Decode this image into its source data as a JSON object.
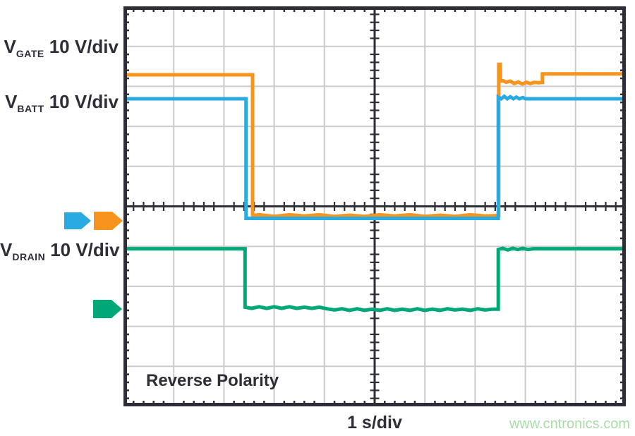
{
  "scope": {
    "channel_labels": [
      {
        "symbol": "V",
        "subscript": "GATE",
        "scale": "10 V/div"
      },
      {
        "symbol": "V",
        "subscript": "BATT",
        "scale": "10 V/div"
      },
      {
        "symbol": "V",
        "subscript": "DRAIN",
        "scale": "10 V/div"
      }
    ],
    "annotation": "Reverse Polarity",
    "timebase_label": "1 s/div",
    "watermark": "www.cntronics.com",
    "colors": {
      "vgate_orange": "#F7941E",
      "vbatt_blue": "#29ABE2",
      "vdrain_green": "#00A878",
      "graticule_dark": "#2E2E38",
      "grid_gray": "#CBCBCB",
      "text_dark": "#2E2E38",
      "watermark_green": "#A9DCA7"
    }
  },
  "chart_data": {
    "type": "line",
    "title": "Reverse Polarity",
    "xlabel": "1 s/div",
    "x_seconds_per_div": 1,
    "volts_per_div": 10,
    "grid": {
      "x_divisions": 10,
      "y_divisions": 10,
      "minor_ticks_per_div": 5,
      "center_crosshair": true,
      "grid_on": true
    },
    "note": "point format [x_div, y_div]; y measured in graticule divisions from top edge; each channel scaled 10 V/div",
    "series": [
      {
        "name": "V_GATE",
        "scale": "10 V/div",
        "color": "#F7941E",
        "z": 2,
        "points": [
          [
            0,
            1.71
          ],
          [
            2.57,
            1.71
          ],
          [
            2.57,
            5.23
          ],
          [
            2.7,
            5.21
          ],
          [
            3.0,
            5.25
          ],
          [
            3.3,
            5.21
          ],
          [
            3.6,
            5.24
          ],
          [
            3.9,
            5.21
          ],
          [
            4.2,
            5.25
          ],
          [
            4.5,
            5.22
          ],
          [
            4.8,
            5.25
          ],
          [
            5.1,
            5.21
          ],
          [
            5.4,
            5.24
          ],
          [
            5.7,
            5.21
          ],
          [
            6.0,
            5.25
          ],
          [
            6.3,
            5.22
          ],
          [
            6.6,
            5.25
          ],
          [
            6.9,
            5.21
          ],
          [
            7.2,
            5.24
          ],
          [
            7.47,
            5.23
          ],
          [
            7.47,
            1.45
          ],
          [
            7.5,
            1.45
          ],
          [
            7.5,
            1.87
          ],
          [
            7.56,
            1.86
          ],
          [
            7.62,
            1.9
          ],
          [
            7.7,
            1.87
          ],
          [
            7.78,
            1.93
          ],
          [
            7.86,
            1.89
          ],
          [
            7.94,
            1.94
          ],
          [
            8.02,
            1.9
          ],
          [
            8.1,
            1.93
          ],
          [
            8.18,
            1.9
          ],
          [
            8.26,
            1.91
          ],
          [
            8.34,
            1.9
          ],
          [
            8.34,
            1.69
          ],
          [
            10,
            1.69
          ]
        ]
      },
      {
        "name": "V_BATT",
        "scale": "10 V/div",
        "color": "#29ABE2",
        "z": 3,
        "points": [
          [
            0,
            2.31
          ],
          [
            2.44,
            2.31
          ],
          [
            2.44,
            5.3
          ],
          [
            7.46,
            5.3
          ],
          [
            7.46,
            2.27
          ],
          [
            7.52,
            2.31
          ],
          [
            7.58,
            2.25
          ],
          [
            7.64,
            2.31
          ],
          [
            7.7,
            2.26
          ],
          [
            7.76,
            2.31
          ],
          [
            7.82,
            2.27
          ],
          [
            7.88,
            2.31
          ],
          [
            7.95,
            2.28
          ],
          [
            8.0,
            2.31
          ],
          [
            10,
            2.31
          ]
        ]
      },
      {
        "name": "V_DRAIN",
        "scale": "10 V/div",
        "color": "#00A878",
        "z": 1,
        "points": [
          [
            0,
            6.06
          ],
          [
            2.42,
            6.06
          ],
          [
            2.42,
            7.52
          ],
          [
            2.55,
            7.55
          ],
          [
            2.7,
            7.51
          ],
          [
            2.85,
            7.55
          ],
          [
            3.0,
            7.51
          ],
          [
            3.15,
            7.55
          ],
          [
            3.3,
            7.51
          ],
          [
            3.45,
            7.55
          ],
          [
            3.6,
            7.52
          ],
          [
            3.75,
            7.55
          ],
          [
            3.9,
            7.52
          ],
          [
            4.05,
            7.56
          ],
          [
            4.2,
            7.59
          ],
          [
            4.35,
            7.56
          ],
          [
            4.5,
            7.6
          ],
          [
            4.65,
            7.56
          ],
          [
            4.8,
            7.6
          ],
          [
            4.95,
            7.57
          ],
          [
            5.1,
            7.6
          ],
          [
            5.25,
            7.56
          ],
          [
            5.4,
            7.6
          ],
          [
            5.55,
            7.57
          ],
          [
            5.7,
            7.6
          ],
          [
            5.85,
            7.56
          ],
          [
            6.0,
            7.6
          ],
          [
            6.15,
            7.57
          ],
          [
            6.3,
            7.6
          ],
          [
            6.45,
            7.56
          ],
          [
            6.6,
            7.59
          ],
          [
            6.75,
            7.57
          ],
          [
            6.9,
            7.6
          ],
          [
            7.05,
            7.56
          ],
          [
            7.2,
            7.59
          ],
          [
            7.35,
            7.57
          ],
          [
            7.46,
            7.57
          ],
          [
            7.46,
            6.08
          ],
          [
            7.55,
            6.05
          ],
          [
            7.65,
            6.09
          ],
          [
            7.75,
            6.05
          ],
          [
            7.85,
            6.08
          ],
          [
            7.95,
            6.05
          ],
          [
            8.05,
            6.08
          ],
          [
            8.15,
            6.06
          ],
          [
            10,
            6.06
          ]
        ]
      }
    ],
    "ground_markers": [
      {
        "channel": "V_BATT",
        "color": "#29ABE2",
        "y_div": 5.36
      },
      {
        "channel": "V_GATE",
        "color": "#F7941E",
        "y_div": 5.36
      },
      {
        "channel": "V_DRAIN",
        "color": "#00A878",
        "y_div": 7.56
      }
    ]
  }
}
